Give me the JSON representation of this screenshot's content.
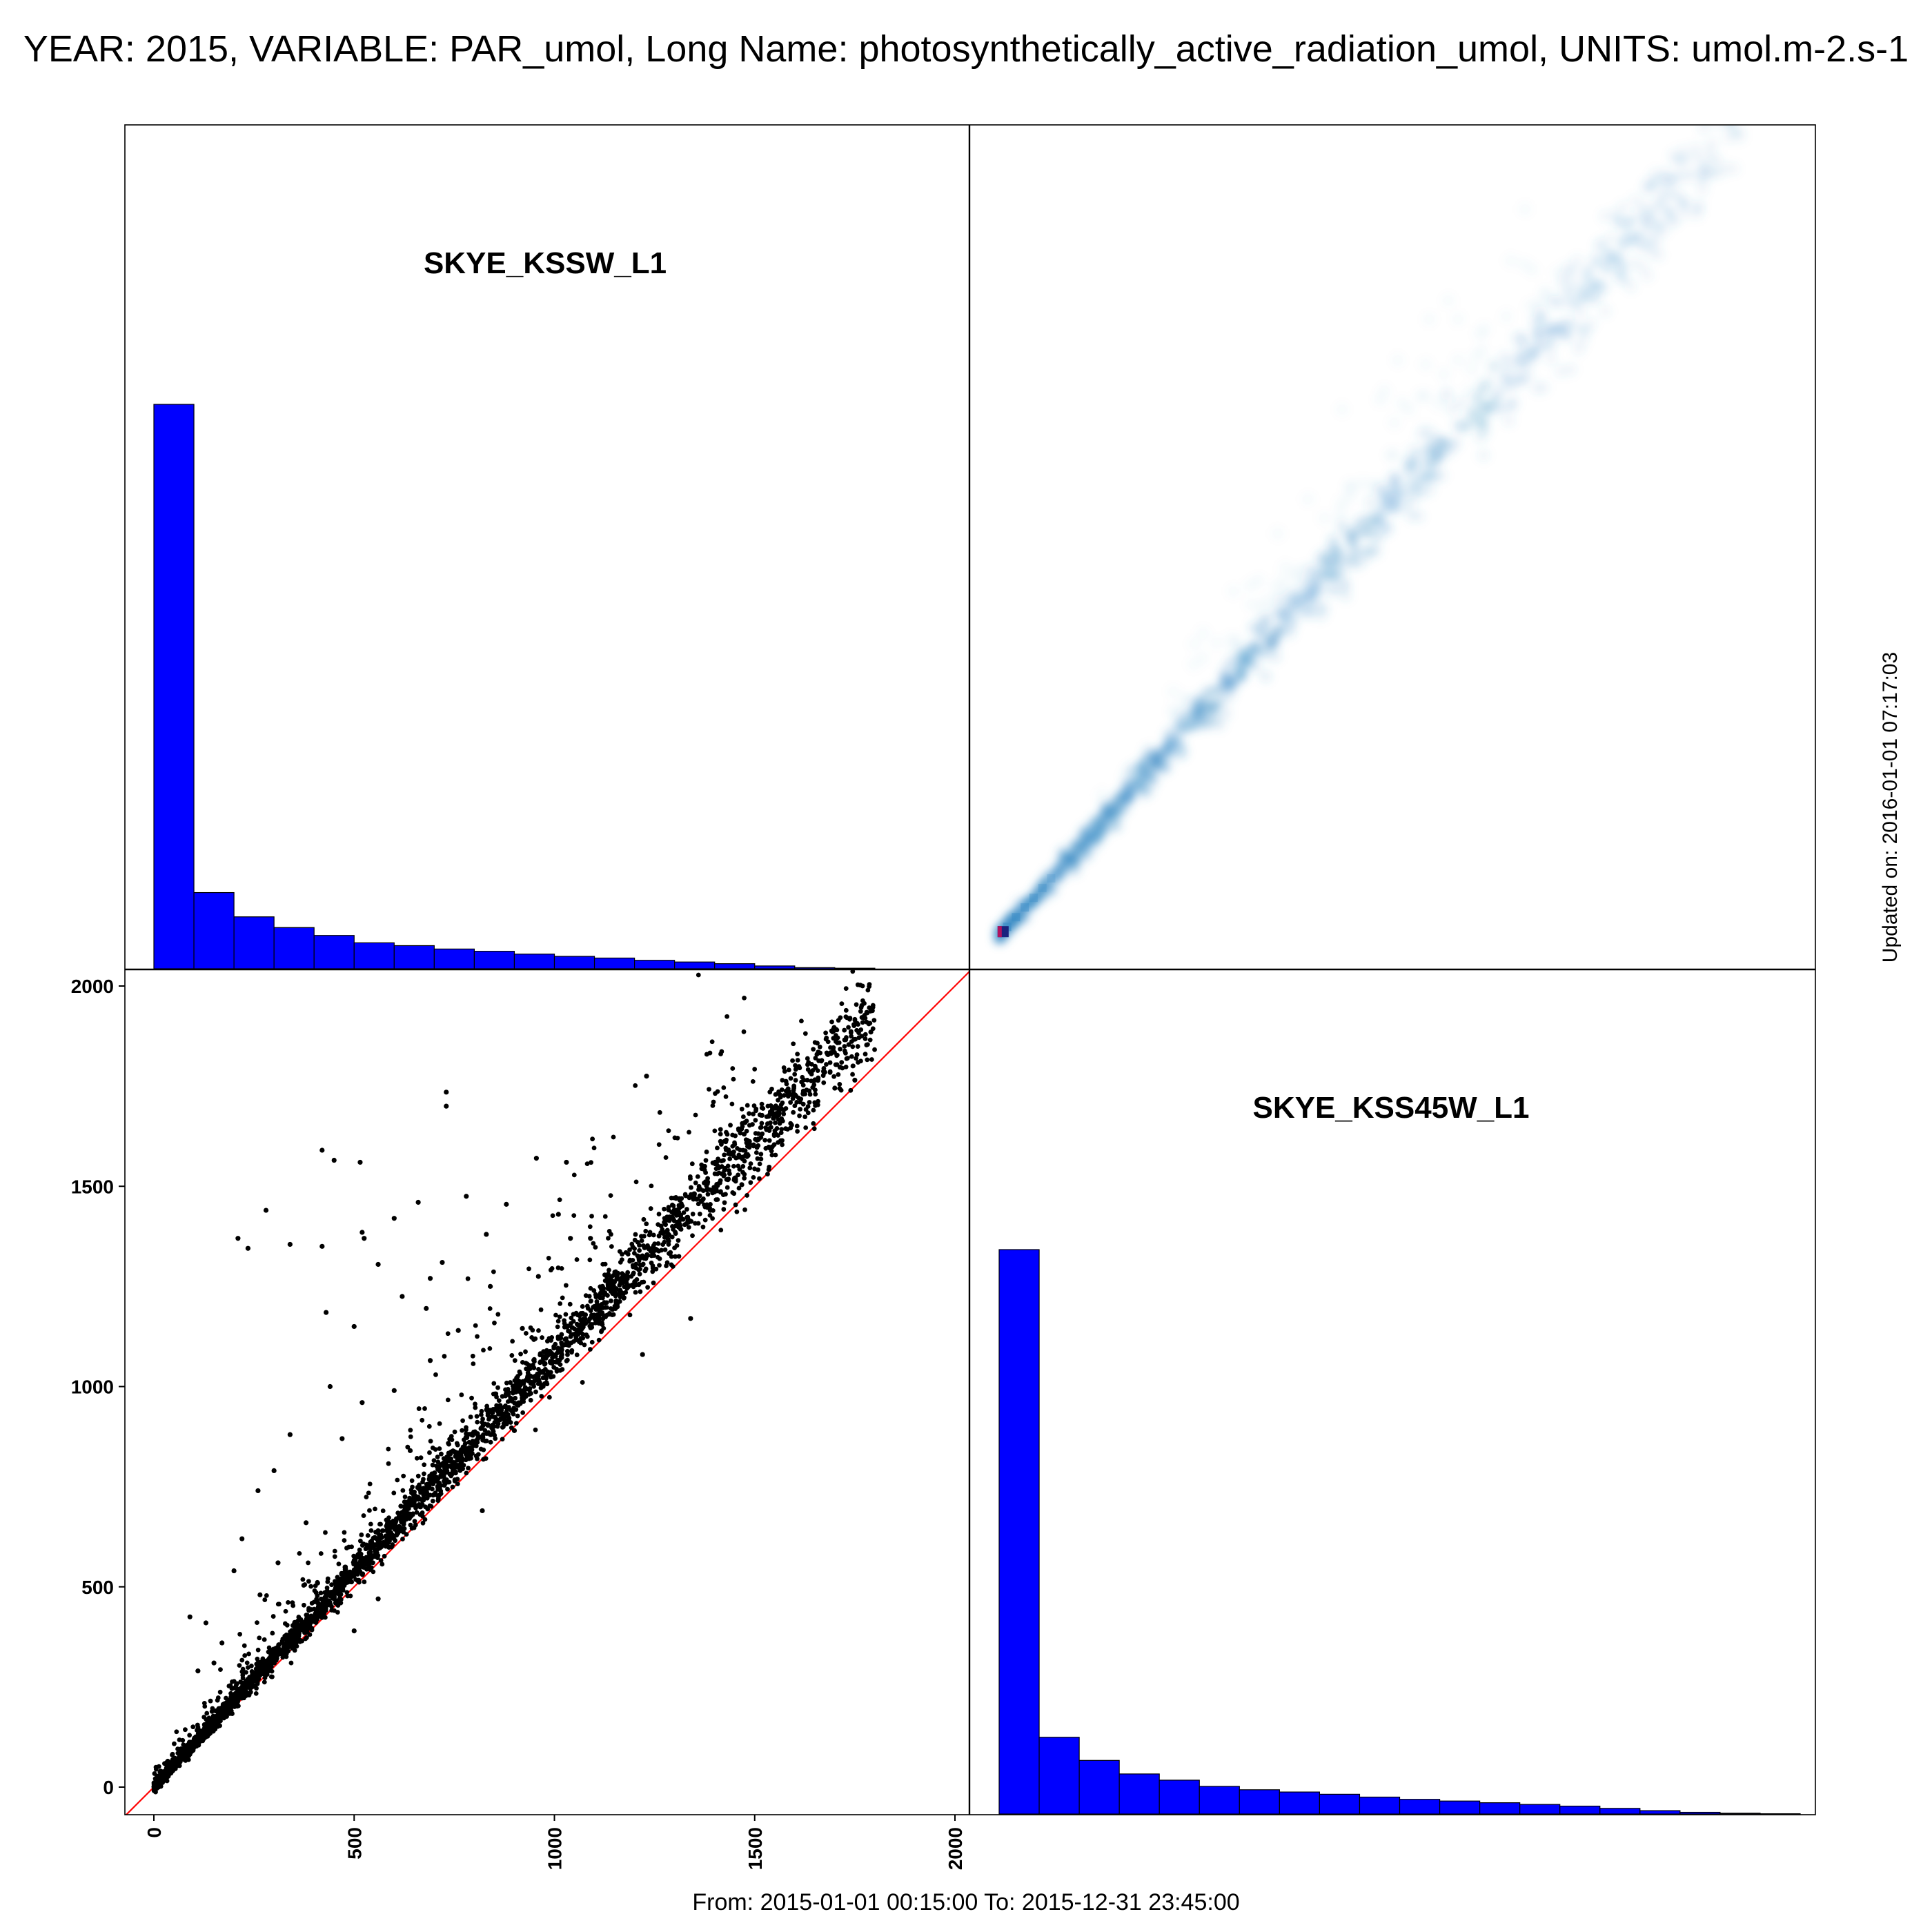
{
  "title": "YEAR: 2015, VARIABLE: PAR_umol, Long Name: photosynthetically_active_radiation_umol, UNITS: umol.m-2.s-1",
  "footer": "From: 2015-01-01 00:15:00 To: 2015-12-31 23:45:00",
  "updated": "Updated on: 2016-01-01 07:17:03",
  "colors": {
    "histogram": "#0000ff",
    "scatter_points": "#000000",
    "identity_line": "#ff0000",
    "density": "#3a8cc6"
  },
  "chart_data": [
    {
      "type": "bar",
      "panel": "top-left",
      "title": "SKYE_KSSW_L1",
      "bin_edges": [
        0,
        100,
        200,
        300,
        400,
        500,
        600,
        700,
        800,
        900,
        1000,
        1100,
        1200,
        1300,
        1400,
        1500,
        1600,
        1700,
        1800
      ],
      "values": [
        100,
        13.5,
        9.2,
        7.3,
        5.9,
        4.6,
        4.1,
        3.5,
        3.1,
        2.6,
        2.2,
        1.9,
        1.5,
        1.2,
        0.9,
        0.5,
        0.2,
        0.1
      ]
    },
    {
      "type": "heatmap",
      "panel": "top-right",
      "xlim": [
        0,
        2000
      ],
      "ylim": [
        0,
        2000
      ],
      "peak": {
        "x": 10,
        "y": 10
      },
      "ridge_slope": 1.1
    },
    {
      "type": "scatter",
      "panel": "bottom-left",
      "xlabel": "",
      "ylabel": "",
      "xlim": [
        -75,
        2000
      ],
      "ylim": [
        -75,
        2000
      ],
      "xticks": [
        "0",
        "500",
        "1000",
        "1500",
        "2000"
      ],
      "yticks": [
        "0",
        "500",
        "1000",
        "1500",
        "2000"
      ],
      "tick_values": [
        0,
        500,
        1000,
        1500,
        2000
      ],
      "reference_line": "y = x",
      "trend_slope": 1.08,
      "outliers": [
        [
          1790,
          1885
        ],
        [
          1750,
          1765
        ],
        [
          1700,
          1745
        ],
        [
          730,
          1735
        ],
        [
          730,
          1700
        ],
        [
          420,
          1590
        ],
        [
          450,
          1565
        ],
        [
          515,
          1560
        ],
        [
          955,
          1570
        ],
        [
          1030,
          1560
        ],
        [
          1230,
          1775
        ],
        [
          660,
          1460
        ],
        [
          780,
          1475
        ],
        [
          880,
          1455
        ],
        [
          280,
          1440
        ],
        [
          210,
          1370
        ],
        [
          235,
          1345
        ],
        [
          340,
          1355
        ],
        [
          420,
          1350
        ],
        [
          520,
          1385
        ],
        [
          525,
          1370
        ],
        [
          600,
          1420
        ],
        [
          1010,
          1430
        ],
        [
          1040,
          1370
        ],
        [
          1090,
          1370
        ],
        [
          830,
          1380
        ],
        [
          720,
          1310
        ],
        [
          690,
          1270
        ],
        [
          620,
          1225
        ],
        [
          680,
          1195
        ],
        [
          430,
          1185
        ],
        [
          560,
          1305
        ],
        [
          500,
          1150
        ],
        [
          760,
          1140
        ],
        [
          920,
          1145
        ],
        [
          840,
          1250
        ],
        [
          960,
          1275
        ],
        [
          690,
          1065
        ],
        [
          440,
          1000
        ],
        [
          520,
          960
        ],
        [
          470,
          870
        ],
        [
          340,
          880
        ],
        [
          600,
          990
        ],
        [
          300,
          790
        ],
        [
          260,
          740
        ],
        [
          220,
          620
        ],
        [
          310,
          560
        ],
        [
          200,
          540
        ],
        [
          90,
          425
        ],
        [
          130,
          410
        ],
        [
          150,
          310
        ],
        [
          110,
          290
        ],
        [
          500,
          390
        ],
        [
          820,
          690
        ],
        [
          560,
          470
        ],
        [
          1220,
          1080
        ],
        [
          1340,
          1170
        ],
        [
          990,
          1060
        ],
        [
          900,
          890
        ],
        [
          640,
          840
        ],
        [
          380,
          660
        ],
        [
          170,
          360
        ],
        [
          265,
          480
        ],
        [
          1120,
          1250
        ],
        [
          1450,
          1520
        ]
      ]
    },
    {
      "type": "bar",
      "panel": "bottom-right",
      "title": "SKYE_KSS45W_L1",
      "bin_edges": [
        0,
        100,
        200,
        300,
        400,
        500,
        600,
        700,
        800,
        900,
        1000,
        1100,
        1200,
        1300,
        1400,
        1500,
        1600,
        1700,
        1800,
        1900,
        2000
      ],
      "values": [
        100,
        13.6,
        9.5,
        7.1,
        6.0,
        4.9,
        4.3,
        3.9,
        3.5,
        3.0,
        2.6,
        2.3,
        2.0,
        1.7,
        1.4,
        1.0,
        0.6,
        0.3,
        0.15,
        0.05
      ]
    }
  ]
}
